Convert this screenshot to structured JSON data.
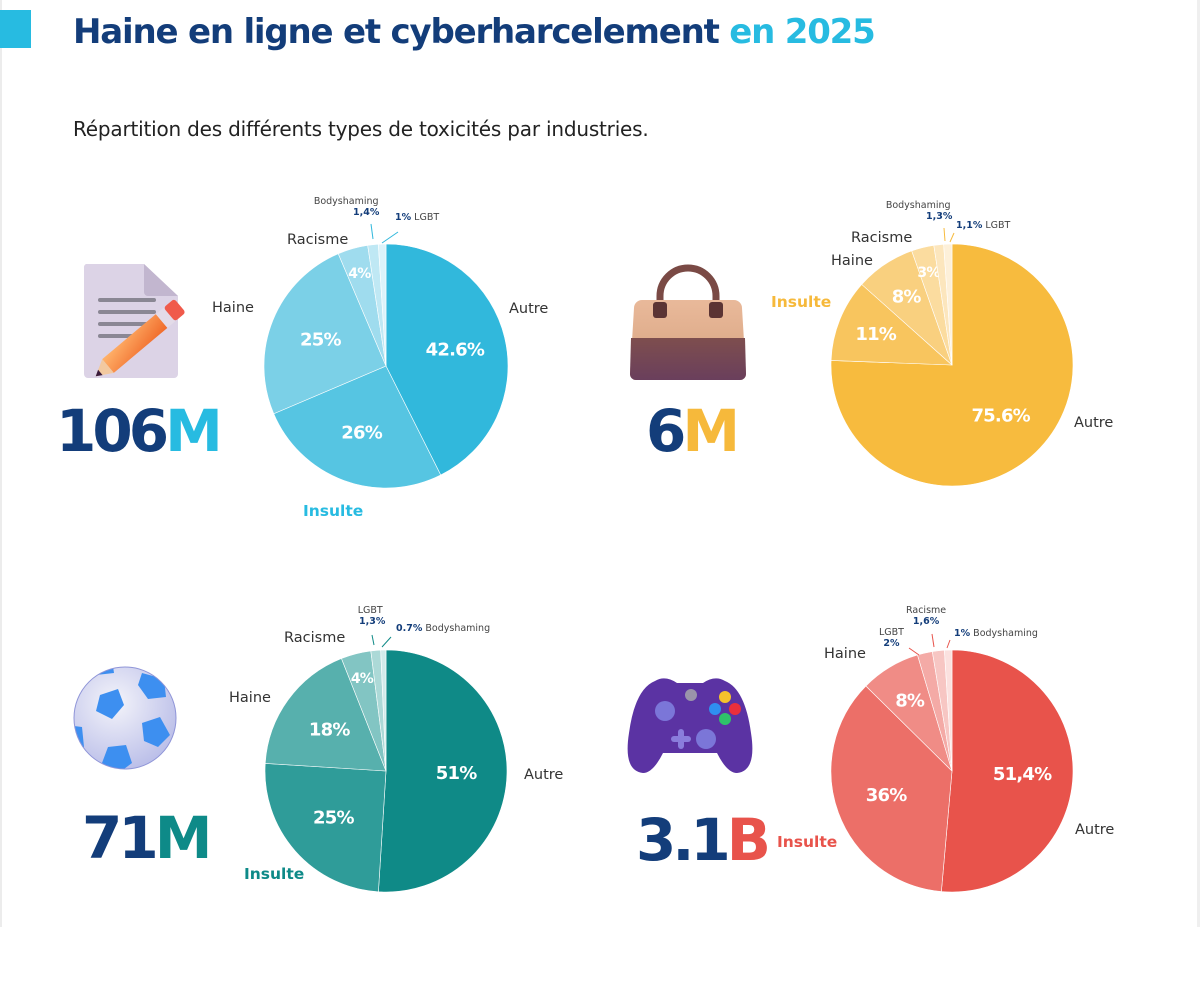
{
  "header": {
    "title_main": "Haine en ligne et cyberharcelement",
    "title_highlight": "en 2025",
    "subtitle": "Répartition des différents types de toxicités par industries."
  },
  "colors": {
    "navy": "#133d7a",
    "accent": "#27bbe1"
  },
  "panels": [
    {
      "icon": "document-pencil-icon",
      "total_number": "106",
      "total_unit": "M",
      "unit_color": "#27bbe1",
      "insulte_color": "#27bbe1"
    },
    {
      "icon": "handbag-icon",
      "total_number": "6",
      "total_unit": "M",
      "unit_color": "#f6b93b",
      "insulte_color": "#f6b93b"
    },
    {
      "icon": "soccer-ball-icon",
      "total_number": "71",
      "total_unit": "M",
      "unit_color": "#0e8a88",
      "insulte_color": "#0e8a88"
    },
    {
      "icon": "game-controller-icon",
      "total_number": "3.1",
      "total_unit": "B",
      "unit_color": "#e8534b",
      "insulte_color": "#e8534b"
    }
  ],
  "chart_data": [
    {
      "type": "pie",
      "title": "106M",
      "start": "12 o'clock, clockwise",
      "slices": [
        {
          "name": "Autre",
          "value": 42.6,
          "label": "42.6%",
          "color": "#31b8dc"
        },
        {
          "name": "Insulte",
          "value": 26,
          "label": "26%",
          "color": "#56c5e2"
        },
        {
          "name": "Haine",
          "value": 25,
          "label": "25%",
          "color": "#7bd0e7"
        },
        {
          "name": "Racisme",
          "value": 4,
          "label": "4%",
          "color": "#9fdcee"
        },
        {
          "name": "Bodyshaming",
          "value": 1.4,
          "label": "1,4%",
          "color": "#bfe8f4"
        },
        {
          "name": "LGBT",
          "value": 1,
          "label": "1%",
          "color": "#dcf3fa"
        }
      ]
    },
    {
      "type": "pie",
      "title": "6M",
      "start": "12 o'clock, clockwise",
      "slices": [
        {
          "name": "Autre",
          "value": 75.6,
          "label": "75.6%",
          "color": "#f7bb3e"
        },
        {
          "name": "Insulte",
          "value": 11,
          "label": "11%",
          "color": "#f8c55e"
        },
        {
          "name": "Haine",
          "value": 8,
          "label": "8%",
          "color": "#f9d07f"
        },
        {
          "name": "Racisme",
          "value": 3,
          "label": "3%",
          "color": "#fbdc9f"
        },
        {
          "name": "Bodyshaming",
          "value": 1.3,
          "label": "1,3%",
          "color": "#fce6bd"
        },
        {
          "name": "LGBT",
          "value": 1.1,
          "label": "1,1%",
          "color": "#fdf0d9"
        }
      ]
    },
    {
      "type": "pie",
      "title": "71M",
      "start": "12 o'clock, clockwise",
      "slices": [
        {
          "name": "Autre",
          "value": 51,
          "label": "51%",
          "color": "#0f8a87"
        },
        {
          "name": "Insulte",
          "value": 25,
          "label": "25%",
          "color": "#2f9c99"
        },
        {
          "name": "Haine",
          "value": 18,
          "label": "18%",
          "color": "#57b0ad"
        },
        {
          "name": "Racisme",
          "value": 4,
          "label": "4%",
          "color": "#82c5c3"
        },
        {
          "name": "LGBT",
          "value": 1.3,
          "label": "1,3%",
          "color": "#acd9d7"
        },
        {
          "name": "Bodyshaming",
          "value": 0.7,
          "label": "0.7%",
          "color": "#d2ebea"
        }
      ]
    },
    {
      "type": "pie",
      "title": "3.1B",
      "start": "12 o'clock, clockwise",
      "slices": [
        {
          "name": "Autre",
          "value": 51.4,
          "label": "51,4%",
          "color": "#e8534b"
        },
        {
          "name": "Insulte",
          "value": 36,
          "label": "36%",
          "color": "#ec6f68"
        },
        {
          "name": "Haine",
          "value": 8,
          "label": "8%",
          "color": "#f08c86"
        },
        {
          "name": "LGBT",
          "value": 2,
          "label": "2%",
          "color": "#f4aaa6"
        },
        {
          "name": "Racisme",
          "value": 1.6,
          "label": "1,6%",
          "color": "#f7c6c3"
        },
        {
          "name": "Bodyshaming",
          "value": 1,
          "label": "1%",
          "color": "#fbe1df"
        }
      ]
    }
  ]
}
